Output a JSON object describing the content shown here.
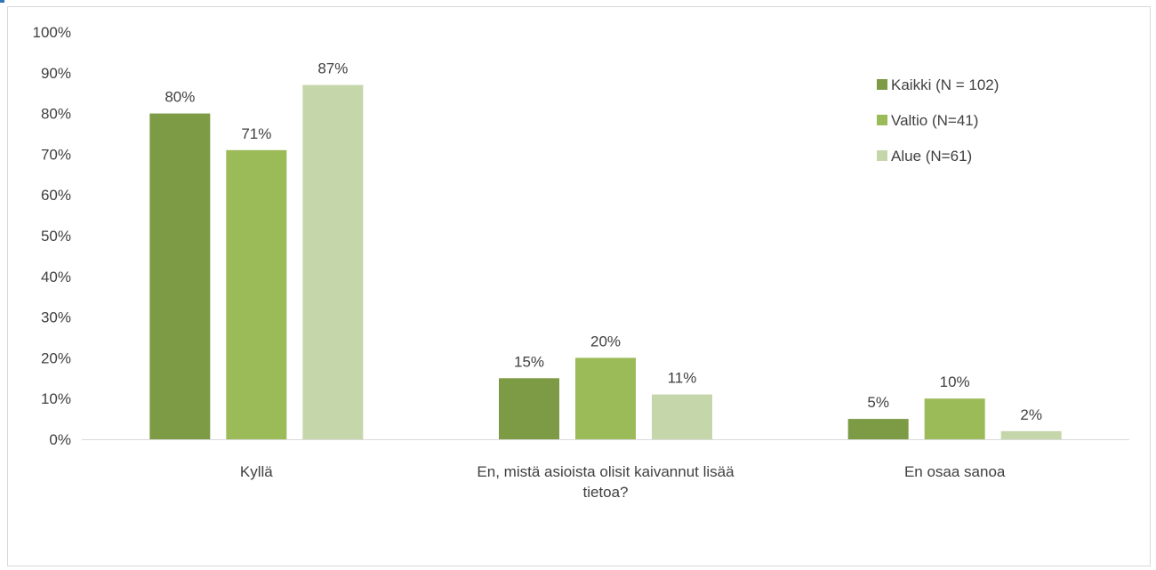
{
  "chart_data": {
    "type": "bar",
    "title": "",
    "xlabel": "",
    "ylabel": "",
    "ylim": [
      0,
      100
    ],
    "ytick_step": 10,
    "ytick_suffix": "%",
    "categories": [
      [
        "Kyllä"
      ],
      [
        "En, mistä asioista olisit kaivannut lisää",
        "tietoa?"
      ],
      [
        "En osaa sanoa"
      ]
    ],
    "series": [
      {
        "name": "Kaikki (N = 102)",
        "color": "#7d9a45",
        "values": [
          80,
          15,
          5
        ]
      },
      {
        "name": "Valtio (N=41)",
        "color": "#9bbb59",
        "values": [
          71,
          20,
          10
        ]
      },
      {
        "name": "Alue (N=61)",
        "color": "#c6d6ab",
        "values": [
          87,
          11,
          2
        ]
      }
    ],
    "value_suffix": "%",
    "grid": false,
    "legend_position": "top-right"
  }
}
